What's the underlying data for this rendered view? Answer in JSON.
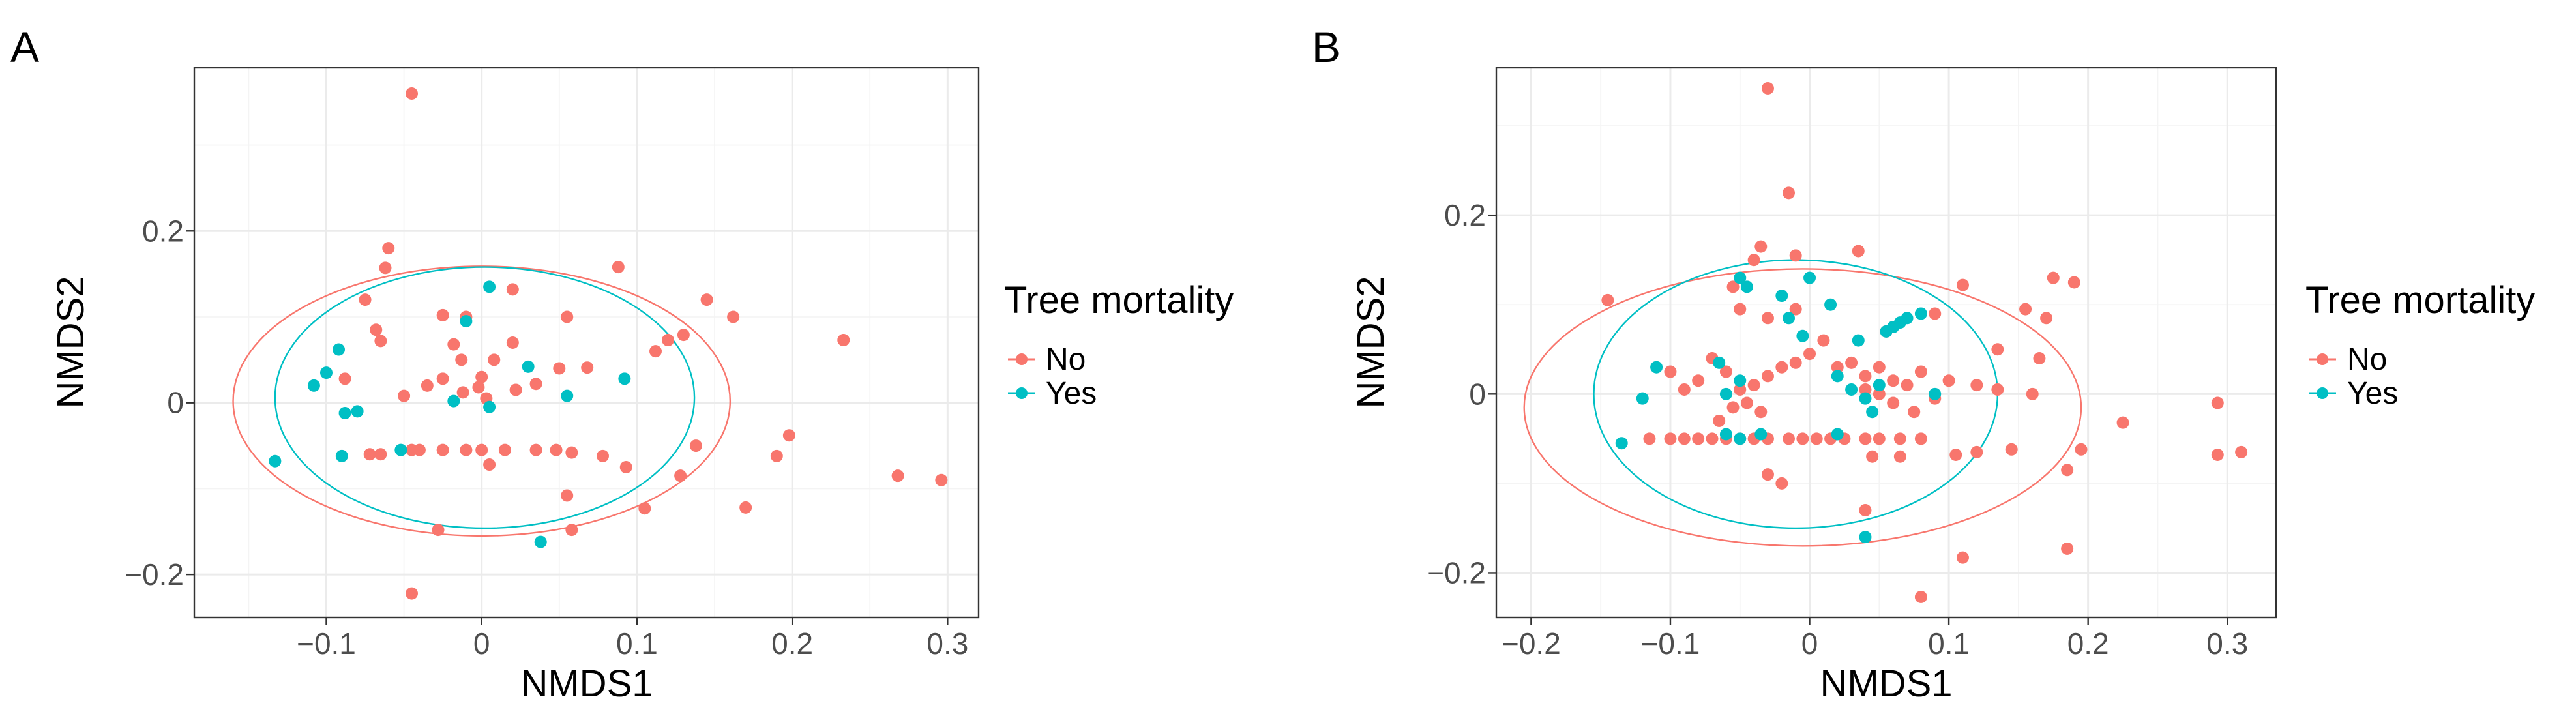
{
  "chart_data": [
    {
      "panel_label": "A",
      "type": "scatter",
      "xlabel": "NMDS1",
      "ylabel": "NMDS2",
      "xlim": [
        -0.185,
        0.32
      ],
      "ylim": [
        -0.25,
        0.39
      ],
      "xticks": [
        -0.1,
        0,
        0.1,
        0.2,
        0.3
      ],
      "xtick_labels": [
        "−0.1",
        "0",
        "0.1",
        "0.2",
        "0.3"
      ],
      "yticks": [
        -0.2,
        0,
        0.2
      ],
      "ytick_labels": [
        "−0.2",
        "0",
        "0.2"
      ],
      "grid": true,
      "legend_title": "Tree mortality",
      "legend_position": "right",
      "series": [
        {
          "name": "No",
          "color": "#F8766D",
          "points": [
            [
              -0.045,
              0.36
            ],
            [
              -0.06,
              0.18
            ],
            [
              -0.062,
              0.157
            ],
            [
              -0.075,
              0.12
            ],
            [
              -0.068,
              0.085
            ],
            [
              -0.065,
              0.072
            ],
            [
              -0.025,
              0.102
            ],
            [
              -0.01,
              0.1
            ],
            [
              -0.018,
              0.068
            ],
            [
              0.02,
              0.132
            ],
            [
              0.055,
              0.1
            ],
            [
              0.088,
              0.158
            ],
            [
              0.12,
              0.073
            ],
            [
              0.13,
              0.079
            ],
            [
              0.145,
              0.12
            ],
            [
              0.162,
              0.1
            ],
            [
              -0.088,
              0.028
            ],
            [
              -0.05,
              0.008
            ],
            [
              -0.035,
              0.02
            ],
            [
              -0.025,
              0.028
            ],
            [
              -0.013,
              0.05
            ],
            [
              -0.002,
              0.018
            ],
            [
              0.008,
              0.05
            ],
            [
              0.003,
              0.005
            ],
            [
              0.022,
              0.015
            ],
            [
              0.02,
              0.07
            ],
            [
              0.035,
              0.022
            ],
            [
              0.05,
              0.04
            ],
            [
              0.068,
              0.041
            ],
            [
              0.112,
              0.06
            ],
            [
              -0.045,
              -0.055
            ],
            [
              -0.065,
              -0.06
            ],
            [
              -0.072,
              -0.06
            ],
            [
              -0.04,
              -0.055
            ],
            [
              -0.025,
              -0.055
            ],
            [
              -0.01,
              -0.055
            ],
            [
              0,
              -0.055
            ],
            [
              0.015,
              -0.055
            ],
            [
              0.035,
              -0.055
            ],
            [
              0.048,
              -0.055
            ],
            [
              0.058,
              -0.058
            ],
            [
              0.078,
              -0.062
            ],
            [
              0.093,
              -0.075
            ],
            [
              0.128,
              -0.085
            ],
            [
              0.138,
              -0.05
            ],
            [
              0.005,
              -0.072
            ],
            [
              0.055,
              -0.108
            ],
            [
              0.058,
              -0.148
            ],
            [
              0.105,
              -0.123
            ],
            [
              -0.028,
              -0.148
            ],
            [
              -0.045,
              -0.222
            ],
            [
              0.17,
              -0.122
            ],
            [
              0.19,
              -0.062
            ],
            [
              0.198,
              -0.038
            ],
            [
              0.233,
              0.073
            ],
            [
              0.268,
              -0.085
            ],
            [
              0.296,
              -0.09
            ],
            [
              -0.012,
              0.012
            ],
            [
              0.0,
              0.03
            ]
          ]
        },
        {
          "name": "Yes",
          "color": "#00BFC4",
          "points": [
            [
              -0.133,
              -0.068
            ],
            [
              -0.108,
              0.02
            ],
            [
              -0.1,
              0.035
            ],
            [
              -0.092,
              0.062
            ],
            [
              -0.088,
              -0.012
            ],
            [
              -0.08,
              -0.01
            ],
            [
              -0.09,
              -0.062
            ],
            [
              -0.052,
              -0.055
            ],
            [
              -0.018,
              0.002
            ],
            [
              -0.01,
              0.095
            ],
            [
              0.005,
              0.135
            ],
            [
              0.005,
              -0.005
            ],
            [
              0.03,
              0.042
            ],
            [
              0.055,
              0.008
            ],
            [
              0.092,
              0.028
            ],
            [
              0.038,
              -0.162
            ]
          ]
        }
      ],
      "ellipses": [
        {
          "series": "No",
          "center": [
            0.0,
            0.002
          ],
          "radius_x": 0.16,
          "radius_y": 0.157
        },
        {
          "series": "Yes",
          "center": [
            0.002,
            0.006
          ],
          "radius_x": 0.135,
          "radius_y": 0.152
        }
      ]
    },
    {
      "panel_label": "B",
      "type": "scatter",
      "xlabel": "NMDS1",
      "ylabel": "NMDS2",
      "xlim": [
        -0.225,
        0.335
      ],
      "ylim": [
        -0.25,
        0.365
      ],
      "xticks": [
        -0.2,
        -0.1,
        0,
        0.1,
        0.2,
        0.3
      ],
      "xtick_labels": [
        "−0.2",
        "−0.1",
        "0",
        "0.1",
        "0.2",
        "0.3"
      ],
      "yticks": [
        -0.2,
        0,
        0.2
      ],
      "ytick_labels": [
        "−0.2",
        "0",
        "0.2"
      ],
      "grid": true,
      "legend_title": "Tree mortality",
      "legend_position": "right",
      "series": [
        {
          "name": "No",
          "color": "#F8766D",
          "points": [
            [
              -0.03,
              0.342
            ],
            [
              -0.015,
              0.225
            ],
            [
              -0.035,
              0.165
            ],
            [
              -0.04,
              0.15
            ],
            [
              -0.01,
              0.155
            ],
            [
              0.035,
              0.16
            ],
            [
              -0.055,
              0.12
            ],
            [
              -0.145,
              0.105
            ],
            [
              -0.05,
              0.095
            ],
            [
              -0.01,
              0.095
            ],
            [
              -0.03,
              0.085
            ],
            [
              0.055,
              0.07
            ],
            [
              0.09,
              0.09
            ],
            [
              0.11,
              0.122
            ],
            [
              0.175,
              0.13
            ],
            [
              0.17,
              0.085
            ],
            [
              0.19,
              0.125
            ],
            [
              0.155,
              0.095
            ],
            [
              0.135,
              0.05
            ],
            [
              0.165,
              0.04
            ],
            [
              -0.1,
              0.025
            ],
            [
              -0.07,
              0.04
            ],
            [
              -0.06,
              0.025
            ],
            [
              -0.08,
              0.015
            ],
            [
              -0.09,
              0.005
            ],
            [
              -0.05,
              0.005
            ],
            [
              -0.04,
              0.01
            ],
            [
              -0.03,
              0.02
            ],
            [
              -0.02,
              0.03
            ],
            [
              -0.01,
              0.035
            ],
            [
              0.0,
              0.045
            ],
            [
              0.01,
              0.06
            ],
            [
              0.02,
              0.03
            ],
            [
              0.03,
              0.035
            ],
            [
              0.04,
              0.02
            ],
            [
              0.05,
              0.03
            ],
            [
              0.06,
              0.015
            ],
            [
              0.07,
              0.01
            ],
            [
              0.08,
              0.025
            ],
            [
              0.1,
              0.015
            ],
            [
              0.12,
              0.01
            ],
            [
              0.04,
              0.005
            ],
            [
              0.05,
              0.0
            ],
            [
              0.06,
              -0.01
            ],
            [
              0.075,
              -0.02
            ],
            [
              0.09,
              -0.005
            ],
            [
              -0.045,
              -0.01
            ],
            [
              -0.035,
              -0.02
            ],
            [
              -0.055,
              -0.015
            ],
            [
              -0.065,
              -0.03
            ],
            [
              -0.115,
              -0.05
            ],
            [
              -0.1,
              -0.05
            ],
            [
              -0.09,
              -0.05
            ],
            [
              -0.08,
              -0.05
            ],
            [
              -0.07,
              -0.05
            ],
            [
              -0.06,
              -0.05
            ],
            [
              -0.05,
              -0.05
            ],
            [
              -0.04,
              -0.05
            ],
            [
              -0.03,
              -0.05
            ],
            [
              -0.015,
              -0.05
            ],
            [
              -0.005,
              -0.05
            ],
            [
              0.005,
              -0.05
            ],
            [
              0.015,
              -0.05
            ],
            [
              0.025,
              -0.05
            ],
            [
              0.04,
              -0.05
            ],
            [
              0.05,
              -0.05
            ],
            [
              0.065,
              -0.05
            ],
            [
              0.08,
              -0.05
            ],
            [
              0.045,
              -0.07
            ],
            [
              0.065,
              -0.07
            ],
            [
              -0.03,
              -0.09
            ],
            [
              -0.02,
              -0.1
            ],
            [
              0.04,
              -0.13
            ],
            [
              0.105,
              -0.068
            ],
            [
              0.12,
              -0.065
            ],
            [
              0.145,
              -0.062
            ],
            [
              0.185,
              -0.085
            ],
            [
              0.195,
              -0.062
            ],
            [
              0.225,
              -0.032
            ],
            [
              0.185,
              -0.173
            ],
            [
              0.11,
              -0.183
            ],
            [
              0.08,
              -0.227
            ],
            [
              0.293,
              -0.01
            ],
            [
              0.293,
              -0.068
            ],
            [
              0.31,
              -0.065
            ],
            [
              0.16,
              0.0
            ],
            [
              0.135,
              0.005
            ]
          ]
        },
        {
          "name": "Yes",
          "color": "#00BFC4",
          "points": [
            [
              -0.135,
              -0.055
            ],
            [
              -0.12,
              -0.005
            ],
            [
              -0.11,
              0.03
            ],
            [
              -0.065,
              0.035
            ],
            [
              -0.06,
              0.0
            ],
            [
              -0.05,
              0.015
            ],
            [
              -0.05,
              0.13
            ],
            [
              -0.045,
              0.12
            ],
            [
              -0.02,
              0.11
            ],
            [
              -0.015,
              0.085
            ],
            [
              0.0,
              0.13
            ],
            [
              -0.005,
              0.065
            ],
            [
              0.02,
              0.02
            ],
            [
              0.035,
              0.06
            ],
            [
              0.03,
              0.005
            ],
            [
              0.04,
              -0.005
            ],
            [
              0.045,
              -0.02
            ],
            [
              0.055,
              0.07
            ],
            [
              0.06,
              0.075
            ],
            [
              0.065,
              0.08
            ],
            [
              0.07,
              0.085
            ],
            [
              0.08,
              0.09
            ],
            [
              0.02,
              -0.045
            ],
            [
              -0.05,
              -0.05
            ],
            [
              -0.035,
              -0.045
            ],
            [
              0.04,
              -0.16
            ],
            [
              0.05,
              0.01
            ],
            [
              0.09,
              0.0
            ],
            [
              0.015,
              0.1
            ],
            [
              -0.06,
              -0.045
            ]
          ]
        }
      ],
      "ellipses": [
        {
          "series": "No",
          "center": [
            -0.005,
            -0.015
          ],
          "radius_x": 0.2,
          "radius_y": 0.155
        },
        {
          "series": "Yes",
          "center": [
            -0.01,
            0.0
          ],
          "radius_x": 0.145,
          "radius_y": 0.15
        }
      ]
    }
  ]
}
